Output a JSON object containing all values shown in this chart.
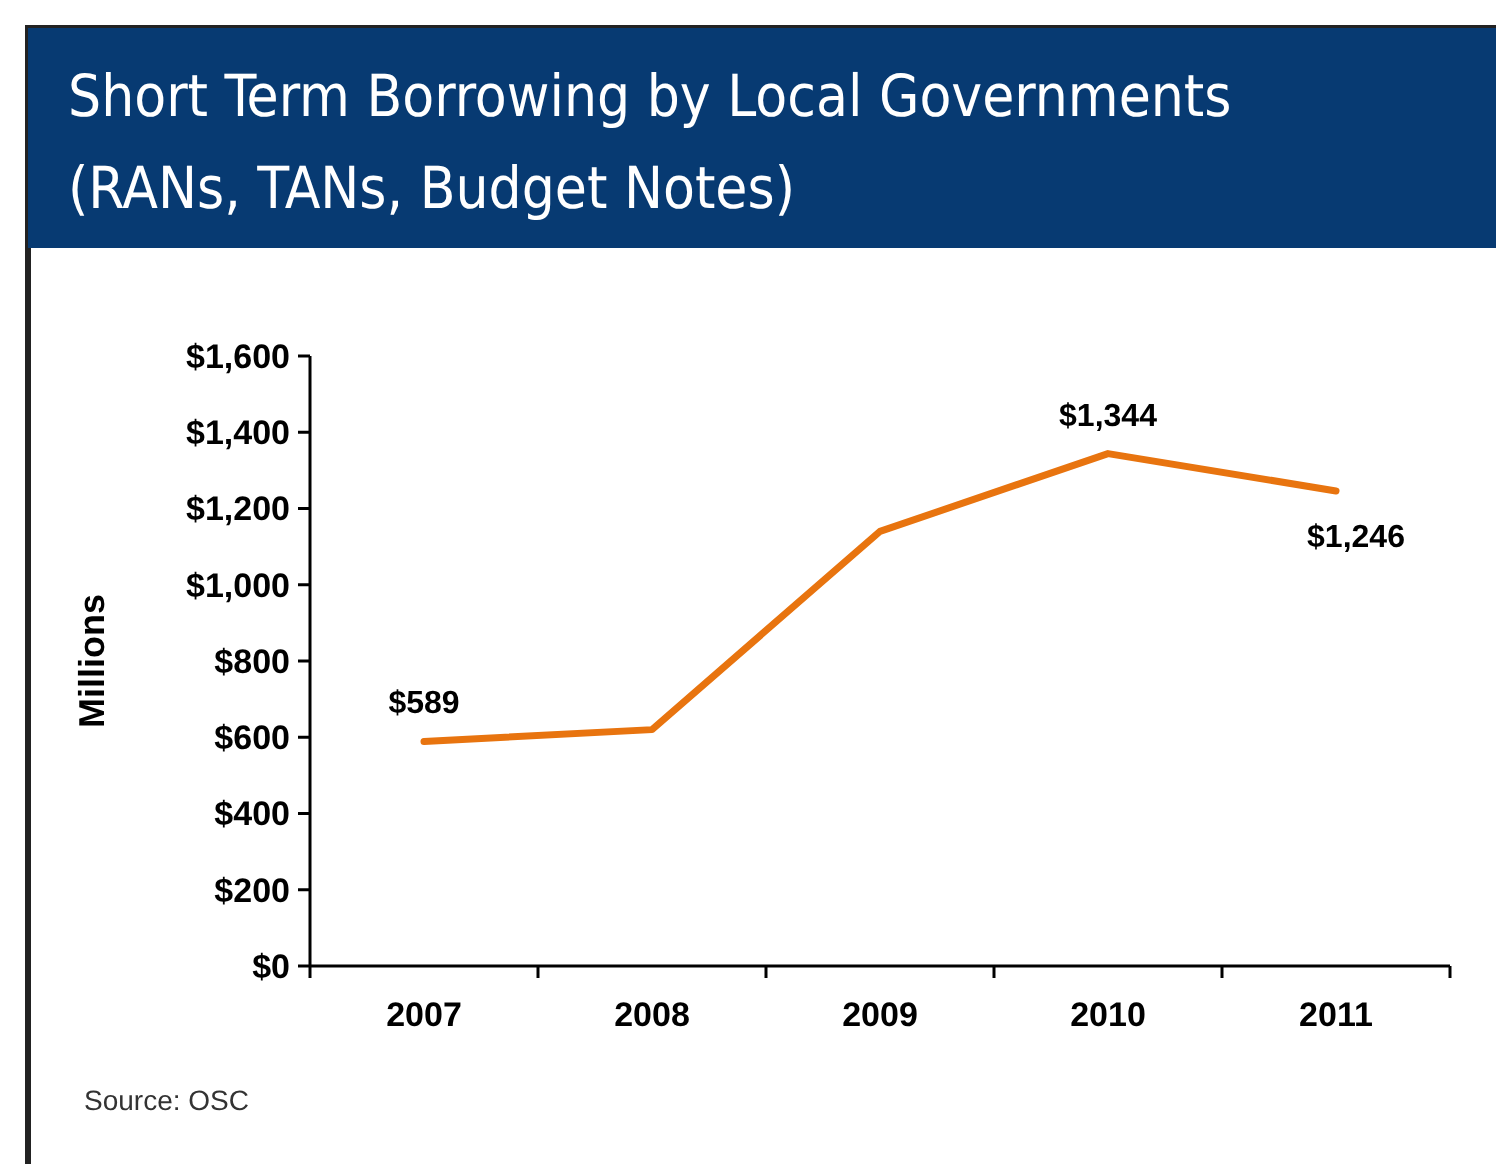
{
  "chart_data": {
    "type": "line",
    "title": "Short Term Borrowing by Local Governments\n(RANs, TANs, Budget Notes)",
    "ylabel": "Millions",
    "categories": [
      "2007",
      "2008",
      "2009",
      "2010",
      "2011"
    ],
    "series": [
      {
        "color": "#e8740f",
        "values": [
          589,
          620,
          1140,
          1344,
          1246
        ],
        "value_labels": [
          "$589",
          null,
          null,
          "$1,344",
          "$1,246"
        ]
      }
    ],
    "ylim": [
      0,
      1600
    ],
    "yticks": [
      {
        "value": 0,
        "label": "$0"
      },
      {
        "value": 200,
        "label": "$200"
      },
      {
        "value": 400,
        "label": "$400"
      },
      {
        "value": 600,
        "label": "$600"
      },
      {
        "value": 800,
        "label": "$800"
      },
      {
        "value": 1000,
        "label": "$1,000"
      },
      {
        "value": 1200,
        "label": "$1,200"
      },
      {
        "value": 1400,
        "label": "$1,400"
      },
      {
        "value": 1600,
        "label": "$1,600"
      }
    ],
    "grid": false,
    "marker": "none",
    "line_style": "solid",
    "annotations": [
      "Source: OSC"
    ]
  }
}
